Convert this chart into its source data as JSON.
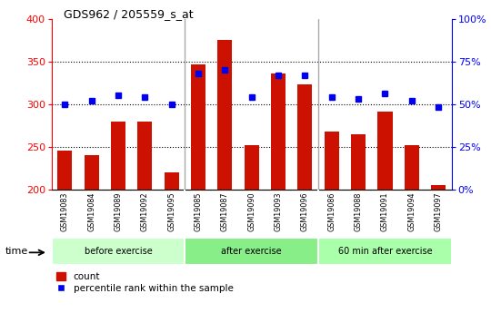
{
  "title": "GDS962 / 205559_s_at",
  "samples": [
    "GSM19083",
    "GSM19084",
    "GSM19089",
    "GSM19092",
    "GSM19095",
    "GSM19085",
    "GSM19087",
    "GSM19090",
    "GSM19093",
    "GSM19096",
    "GSM19086",
    "GSM19088",
    "GSM19091",
    "GSM19094",
    "GSM19097"
  ],
  "counts": [
    245,
    240,
    280,
    280,
    220,
    347,
    375,
    252,
    336,
    323,
    268,
    265,
    291,
    252,
    205
  ],
  "percentiles": [
    50,
    52,
    55,
    54,
    50,
    68,
    70,
    54,
    67,
    67,
    54,
    53,
    56,
    52,
    48
  ],
  "ymin": 200,
  "ymax": 400,
  "left_yticks": [
    200,
    250,
    300,
    350,
    400
  ],
  "right_yticks": [
    0,
    25,
    50,
    75,
    100
  ],
  "bar_color": "#CC1100",
  "dot_color": "#0000EE",
  "groups": [
    {
      "label": "before exercise",
      "start": 0,
      "end": 5,
      "color": "#CCFFCC"
    },
    {
      "label": "after exercise",
      "start": 5,
      "end": 10,
      "color": "#88EE88"
    },
    {
      "label": "60 min after exercise",
      "start": 10,
      "end": 15,
      "color": "#AAFFAA"
    }
  ],
  "bar_width": 0.55,
  "legend_count_label": "count",
  "legend_pct_label": "percentile rank within the sample",
  "grid_yticks": [
    250,
    300,
    350
  ],
  "separator_color": "#AAAAAA",
  "sample_bg": "#CCCCCC"
}
